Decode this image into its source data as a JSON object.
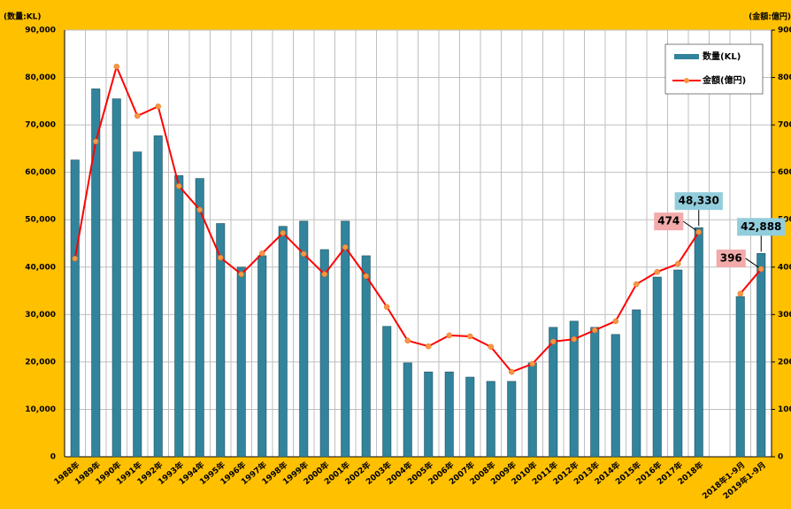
{
  "chart_data": {
    "type": "bar_line",
    "y_axis_label": "(数量:KL)",
    "y2_axis_label": "(金額:億円)",
    "categories": [
      "1988年",
      "1989年",
      "1990年",
      "1991年",
      "1992年",
      "1993年",
      "1994年",
      "1995年",
      "1996年",
      "1997年",
      "1998年",
      "1999年",
      "2000年",
      "2001年",
      "2002年",
      "2003年",
      "2004年",
      "2005年",
      "2006年",
      "2007年",
      "2008年",
      "2009年",
      "2010年",
      "2011年",
      "2012年",
      "2013年",
      "2014年",
      "2015年",
      "2016年",
      "2017年",
      "2018年",
      null,
      "2018年1-9月",
      "2019年1-9月"
    ],
    "series": [
      {
        "name": "数量(KL)",
        "type": "bar",
        "color": "#31849b",
        "values": [
          62600,
          77600,
          75500,
          64300,
          67700,
          59300,
          58700,
          49200,
          40000,
          42400,
          48600,
          49700,
          43700,
          49700,
          42400,
          27500,
          19800,
          17900,
          17900,
          16800,
          15900,
          15900,
          19800,
          27300,
          28600,
          27300,
          25800,
          31000,
          37900,
          39400,
          48330,
          null,
          33800,
          42888
        ],
        "value_labels": [
          null,
          null,
          null,
          null,
          null,
          null,
          null,
          null,
          null,
          null,
          null,
          null,
          null,
          null,
          null,
          null,
          null,
          null,
          null,
          null,
          null,
          null,
          null,
          null,
          null,
          null,
          null,
          null,
          null,
          null,
          "48,330",
          null,
          null,
          "42,888"
        ]
      },
      {
        "name": "金額(億円)",
        "type": "line",
        "axis": "y2",
        "color": "#ff0000",
        "marker_color": "#f79646",
        "values": [
          418,
          665,
          823,
          719,
          739,
          571,
          521,
          420,
          385,
          429,
          472,
          428,
          385,
          442,
          381,
          316,
          245,
          233,
          256,
          254,
          232,
          179,
          196,
          243,
          248,
          267,
          286,
          364,
          390,
          407,
          474,
          null,
          344,
          396
        ],
        "value_labels": [
          null,
          null,
          null,
          null,
          null,
          null,
          null,
          null,
          null,
          null,
          null,
          null,
          null,
          null,
          null,
          null,
          null,
          null,
          null,
          null,
          null,
          null,
          null,
          null,
          null,
          null,
          null,
          null,
          null,
          null,
          "474",
          null,
          null,
          "396"
        ]
      }
    ],
    "ylim": [
      0,
      90000
    ],
    "yticks": [
      {
        "value": 0,
        "label": "0"
      },
      {
        "value": 10000,
        "label": "10,000"
      },
      {
        "value": 20000,
        "label": "20,000"
      },
      {
        "value": 30000,
        "label": "30,000"
      },
      {
        "value": 40000,
        "label": "40,000"
      },
      {
        "value": 50000,
        "label": "50,000"
      },
      {
        "value": 60000,
        "label": "60,000"
      },
      {
        "value": 70000,
        "label": "70,000"
      },
      {
        "value": 80000,
        "label": "80,000"
      },
      {
        "value": 90000,
        "label": "90,000"
      }
    ],
    "y2lim": [
      0,
      900
    ],
    "y2ticks": [
      0,
      100,
      200,
      300,
      400,
      500,
      600,
      700,
      800,
      900
    ],
    "grid": true,
    "legend": "upper right"
  }
}
